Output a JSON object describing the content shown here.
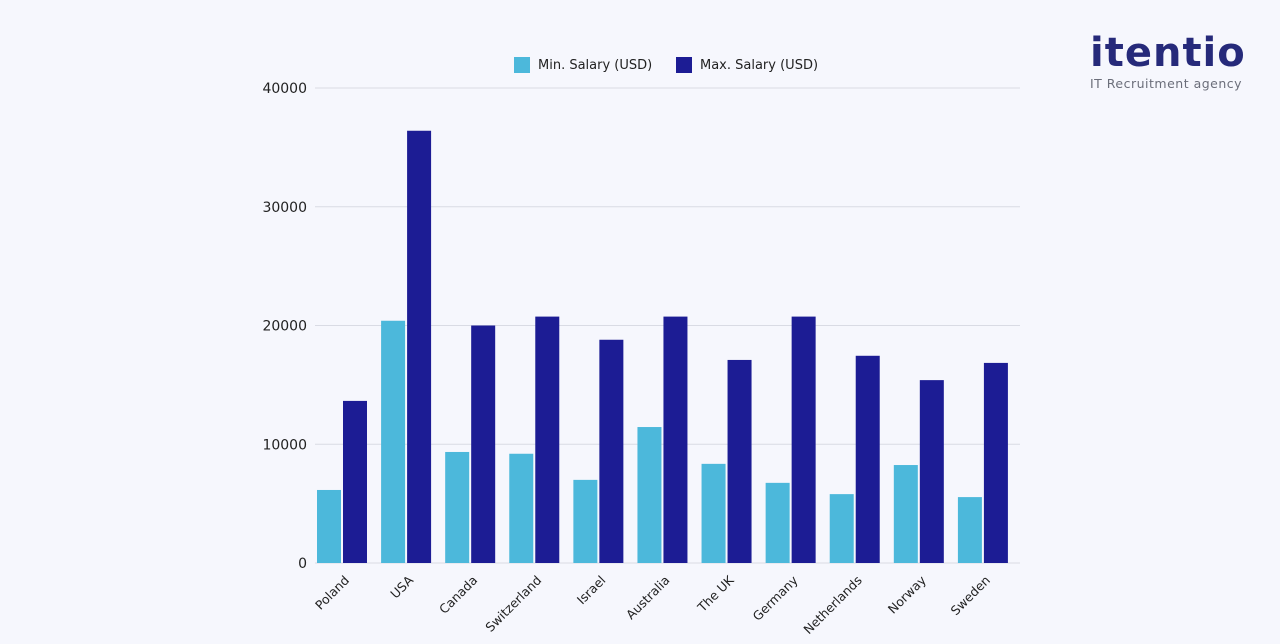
{
  "logo": {
    "name": "itentio",
    "tagline": "IT Recruitment agency"
  },
  "chart_data": {
    "type": "bar",
    "categories": [
      "Poland",
      "USA",
      "Canada",
      "Switzerland",
      "Israel",
      "Australia",
      "The UK",
      "Germany",
      "Netherlands",
      "Norway",
      "Sweden"
    ],
    "series": [
      {
        "name": "Min. Salary (USD)",
        "color": "#4cb8db",
        "values": [
          6150,
          20400,
          9350,
          9200,
          7000,
          11450,
          8350,
          6750,
          5800,
          8250,
          5550
        ]
      },
      {
        "name": "Max. Salary (USD)",
        "color": "#1c1c94",
        "values": [
          13650,
          36400,
          20000,
          20750,
          18800,
          20750,
          17100,
          20750,
          17450,
          15400,
          16850
        ]
      }
    ],
    "yticks": [
      "0",
      "10000",
      "20000",
      "30000",
      "40000"
    ],
    "ylim": [
      0,
      40000
    ],
    "grid": true,
    "legend": "top"
  }
}
